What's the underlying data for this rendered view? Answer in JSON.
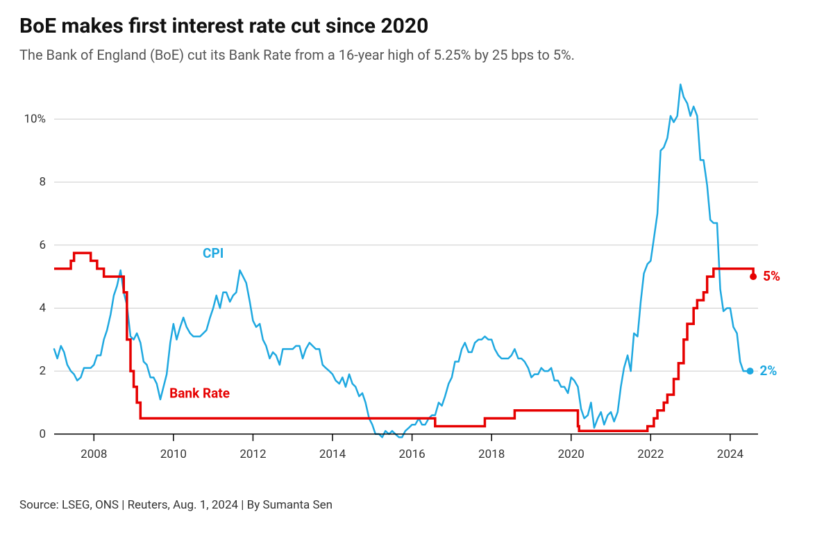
{
  "title": "BoE makes first interest rate cut since 2020",
  "subtitle": "The Bank of England (BoE) cut its Bank Rate from a 16-year high of 5.25% by 25 bps to 5%.",
  "source": "Source: LSEG, ONS | Reuters, Aug. 1, 2024 | By Sumanta Sen",
  "chart": {
    "type": "line",
    "background_color": "#ffffff",
    "grid_color": "#cccccc",
    "axis_color": "#000000",
    "label_color": "#333333",
    "x_domain_min": 2007.0,
    "x_domain_max": 2024.7,
    "ylim": [
      -0.6,
      11.2
    ],
    "y_ticks": [
      0,
      2,
      4,
      6,
      8,
      10
    ],
    "y_tick_labels": [
      "0",
      "2",
      "4",
      "6",
      "8",
      "10%"
    ],
    "x_ticks": [
      2008,
      2010,
      2012,
      2014,
      2016,
      2018,
      2020,
      2022,
      2024
    ],
    "series": {
      "bank_rate": {
        "label": "Bank Rate",
        "label_x": 2009.9,
        "label_y": 1.15,
        "color": "#e60000",
        "stroke_width": 3.5,
        "end_label": "5%",
        "end_marker_radius": 5,
        "data": [
          [
            2007.0,
            5.25
          ],
          [
            2007.08,
            5.25
          ],
          [
            2007.42,
            5.5
          ],
          [
            2007.5,
            5.75
          ],
          [
            2007.92,
            5.5
          ],
          [
            2008.08,
            5.25
          ],
          [
            2008.25,
            5.0
          ],
          [
            2008.75,
            4.5
          ],
          [
            2008.83,
            3.0
          ],
          [
            2008.92,
            2.0
          ],
          [
            2009.0,
            1.5
          ],
          [
            2009.08,
            1.0
          ],
          [
            2009.17,
            0.5
          ],
          [
            2016.55,
            0.5
          ],
          [
            2016.58,
            0.25
          ],
          [
            2017.8,
            0.25
          ],
          [
            2017.83,
            0.5
          ],
          [
            2018.55,
            0.5
          ],
          [
            2018.58,
            0.75
          ],
          [
            2020.15,
            0.75
          ],
          [
            2020.17,
            0.25
          ],
          [
            2020.2,
            0.1
          ],
          [
            2021.9,
            0.1
          ],
          [
            2021.92,
            0.25
          ],
          [
            2022.08,
            0.5
          ],
          [
            2022.17,
            0.75
          ],
          [
            2022.33,
            1.0
          ],
          [
            2022.42,
            1.25
          ],
          [
            2022.58,
            1.75
          ],
          [
            2022.7,
            2.25
          ],
          [
            2022.83,
            3.0
          ],
          [
            2022.92,
            3.5
          ],
          [
            2023.08,
            4.0
          ],
          [
            2023.17,
            4.25
          ],
          [
            2023.33,
            4.5
          ],
          [
            2023.42,
            5.0
          ],
          [
            2023.58,
            5.25
          ],
          [
            2024.55,
            5.25
          ],
          [
            2024.58,
            5.0
          ]
        ]
      },
      "cpi": {
        "label": "CPI",
        "label_x": 2011.0,
        "label_y": 5.6,
        "color": "#1ea8e0",
        "stroke_width": 2.5,
        "end_label": "2%",
        "end_marker_radius": 5,
        "data": [
          [
            2007.0,
            2.7
          ],
          [
            2007.08,
            2.4
          ],
          [
            2007.17,
            2.8
          ],
          [
            2007.25,
            2.6
          ],
          [
            2007.33,
            2.2
          ],
          [
            2007.42,
            2.0
          ],
          [
            2007.5,
            1.9
          ],
          [
            2007.58,
            1.7
          ],
          [
            2007.67,
            1.8
          ],
          [
            2007.75,
            2.1
          ],
          [
            2007.83,
            2.1
          ],
          [
            2007.92,
            2.1
          ],
          [
            2008.0,
            2.2
          ],
          [
            2008.08,
            2.5
          ],
          [
            2008.17,
            2.5
          ],
          [
            2008.25,
            3.0
          ],
          [
            2008.33,
            3.3
          ],
          [
            2008.42,
            3.8
          ],
          [
            2008.5,
            4.4
          ],
          [
            2008.58,
            4.7
          ],
          [
            2008.67,
            5.2
          ],
          [
            2008.75,
            4.5
          ],
          [
            2008.83,
            4.1
          ],
          [
            2008.92,
            3.1
          ],
          [
            2009.0,
            3.0
          ],
          [
            2009.08,
            3.2
          ],
          [
            2009.17,
            2.9
          ],
          [
            2009.25,
            2.3
          ],
          [
            2009.33,
            2.2
          ],
          [
            2009.42,
            1.8
          ],
          [
            2009.5,
            1.8
          ],
          [
            2009.58,
            1.6
          ],
          [
            2009.67,
            1.1
          ],
          [
            2009.75,
            1.5
          ],
          [
            2009.83,
            1.9
          ],
          [
            2009.92,
            2.9
          ],
          [
            2010.0,
            3.5
          ],
          [
            2010.08,
            3.0
          ],
          [
            2010.17,
            3.4
          ],
          [
            2010.25,
            3.7
          ],
          [
            2010.33,
            3.4
          ],
          [
            2010.42,
            3.2
          ],
          [
            2010.5,
            3.1
          ],
          [
            2010.58,
            3.1
          ],
          [
            2010.67,
            3.1
          ],
          [
            2010.75,
            3.2
          ],
          [
            2010.83,
            3.3
          ],
          [
            2010.92,
            3.7
          ],
          [
            2011.0,
            4.0
          ],
          [
            2011.08,
            4.4
          ],
          [
            2011.17,
            4.0
          ],
          [
            2011.25,
            4.5
          ],
          [
            2011.33,
            4.5
          ],
          [
            2011.42,
            4.2
          ],
          [
            2011.5,
            4.4
          ],
          [
            2011.58,
            4.5
          ],
          [
            2011.67,
            5.2
          ],
          [
            2011.75,
            5.0
          ],
          [
            2011.83,
            4.8
          ],
          [
            2011.92,
            4.2
          ],
          [
            2012.0,
            3.6
          ],
          [
            2012.08,
            3.4
          ],
          [
            2012.17,
            3.5
          ],
          [
            2012.25,
            3.0
          ],
          [
            2012.33,
            2.8
          ],
          [
            2012.42,
            2.4
          ],
          [
            2012.5,
            2.6
          ],
          [
            2012.58,
            2.5
          ],
          [
            2012.67,
            2.2
          ],
          [
            2012.75,
            2.7
          ],
          [
            2012.83,
            2.7
          ],
          [
            2012.92,
            2.7
          ],
          [
            2013.0,
            2.7
          ],
          [
            2013.08,
            2.8
          ],
          [
            2013.17,
            2.8
          ],
          [
            2013.25,
            2.4
          ],
          [
            2013.33,
            2.7
          ],
          [
            2013.42,
            2.9
          ],
          [
            2013.5,
            2.8
          ],
          [
            2013.58,
            2.7
          ],
          [
            2013.67,
            2.7
          ],
          [
            2013.75,
            2.2
          ],
          [
            2013.83,
            2.1
          ],
          [
            2013.92,
            2.0
          ],
          [
            2014.0,
            1.9
          ],
          [
            2014.08,
            1.7
          ],
          [
            2014.17,
            1.6
          ],
          [
            2014.25,
            1.8
          ],
          [
            2014.33,
            1.5
          ],
          [
            2014.42,
            1.9
          ],
          [
            2014.5,
            1.6
          ],
          [
            2014.58,
            1.5
          ],
          [
            2014.67,
            1.2
          ],
          [
            2014.75,
            1.3
          ],
          [
            2014.83,
            1.0
          ],
          [
            2014.92,
            0.5
          ],
          [
            2015.0,
            0.3
          ],
          [
            2015.08,
            0.0
          ],
          [
            2015.17,
            0.0
          ],
          [
            2015.25,
            -0.1
          ],
          [
            2015.33,
            0.1
          ],
          [
            2015.42,
            0.0
          ],
          [
            2015.5,
            0.1
          ],
          [
            2015.58,
            0.0
          ],
          [
            2015.67,
            -0.1
          ],
          [
            2015.75,
            -0.1
          ],
          [
            2015.83,
            0.1
          ],
          [
            2015.92,
            0.2
          ],
          [
            2016.0,
            0.3
          ],
          [
            2016.08,
            0.3
          ],
          [
            2016.17,
            0.5
          ],
          [
            2016.25,
            0.3
          ],
          [
            2016.33,
            0.3
          ],
          [
            2016.42,
            0.5
          ],
          [
            2016.5,
            0.6
          ],
          [
            2016.58,
            0.6
          ],
          [
            2016.67,
            1.0
          ],
          [
            2016.75,
            0.9
          ],
          [
            2016.83,
            1.2
          ],
          [
            2016.92,
            1.6
          ],
          [
            2017.0,
            1.8
          ],
          [
            2017.08,
            2.3
          ],
          [
            2017.17,
            2.3
          ],
          [
            2017.25,
            2.7
          ],
          [
            2017.33,
            2.9
          ],
          [
            2017.42,
            2.6
          ],
          [
            2017.5,
            2.6
          ],
          [
            2017.58,
            2.9
          ],
          [
            2017.67,
            3.0
          ],
          [
            2017.75,
            3.0
          ],
          [
            2017.83,
            3.1
          ],
          [
            2017.92,
            3.0
          ],
          [
            2018.0,
            3.0
          ],
          [
            2018.08,
            2.7
          ],
          [
            2018.17,
            2.5
          ],
          [
            2018.25,
            2.4
          ],
          [
            2018.33,
            2.4
          ],
          [
            2018.42,
            2.4
          ],
          [
            2018.5,
            2.5
          ],
          [
            2018.58,
            2.7
          ],
          [
            2018.67,
            2.4
          ],
          [
            2018.75,
            2.4
          ],
          [
            2018.83,
            2.3
          ],
          [
            2018.92,
            2.1
          ],
          [
            2019.0,
            1.8
          ],
          [
            2019.08,
            1.9
          ],
          [
            2019.17,
            1.9
          ],
          [
            2019.25,
            2.1
          ],
          [
            2019.33,
            2.0
          ],
          [
            2019.42,
            2.0
          ],
          [
            2019.5,
            2.1
          ],
          [
            2019.58,
            1.7
          ],
          [
            2019.67,
            1.7
          ],
          [
            2019.75,
            1.5
          ],
          [
            2019.83,
            1.5
          ],
          [
            2019.92,
            1.3
          ],
          [
            2020.0,
            1.8
          ],
          [
            2020.08,
            1.7
          ],
          [
            2020.17,
            1.5
          ],
          [
            2020.25,
            0.8
          ],
          [
            2020.33,
            0.5
          ],
          [
            2020.42,
            0.6
          ],
          [
            2020.5,
            1.0
          ],
          [
            2020.58,
            0.2
          ],
          [
            2020.67,
            0.5
          ],
          [
            2020.75,
            0.7
          ],
          [
            2020.83,
            0.3
          ],
          [
            2020.92,
            0.6
          ],
          [
            2021.0,
            0.7
          ],
          [
            2021.08,
            0.4
          ],
          [
            2021.17,
            0.7
          ],
          [
            2021.25,
            1.5
          ],
          [
            2021.33,
            2.1
          ],
          [
            2021.42,
            2.5
          ],
          [
            2021.5,
            2.0
          ],
          [
            2021.58,
            3.2
          ],
          [
            2021.67,
            3.1
          ],
          [
            2021.75,
            4.2
          ],
          [
            2021.83,
            5.1
          ],
          [
            2021.92,
            5.4
          ],
          [
            2022.0,
            5.5
          ],
          [
            2022.08,
            6.2
          ],
          [
            2022.17,
            7.0
          ],
          [
            2022.25,
            9.0
          ],
          [
            2022.33,
            9.1
          ],
          [
            2022.42,
            9.4
          ],
          [
            2022.5,
            10.1
          ],
          [
            2022.58,
            9.9
          ],
          [
            2022.67,
            10.1
          ],
          [
            2022.75,
            11.1
          ],
          [
            2022.83,
            10.7
          ],
          [
            2022.92,
            10.5
          ],
          [
            2023.0,
            10.1
          ],
          [
            2023.08,
            10.4
          ],
          [
            2023.17,
            10.1
          ],
          [
            2023.25,
            8.7
          ],
          [
            2023.33,
            8.7
          ],
          [
            2023.42,
            7.9
          ],
          [
            2023.5,
            6.8
          ],
          [
            2023.58,
            6.7
          ],
          [
            2023.67,
            6.7
          ],
          [
            2023.75,
            4.6
          ],
          [
            2023.83,
            3.9
          ],
          [
            2023.92,
            4.0
          ],
          [
            2024.0,
            4.0
          ],
          [
            2024.08,
            3.4
          ],
          [
            2024.17,
            3.2
          ],
          [
            2024.25,
            2.3
          ],
          [
            2024.33,
            2.0
          ],
          [
            2024.42,
            2.0
          ],
          [
            2024.5,
            2.0
          ]
        ]
      }
    }
  }
}
